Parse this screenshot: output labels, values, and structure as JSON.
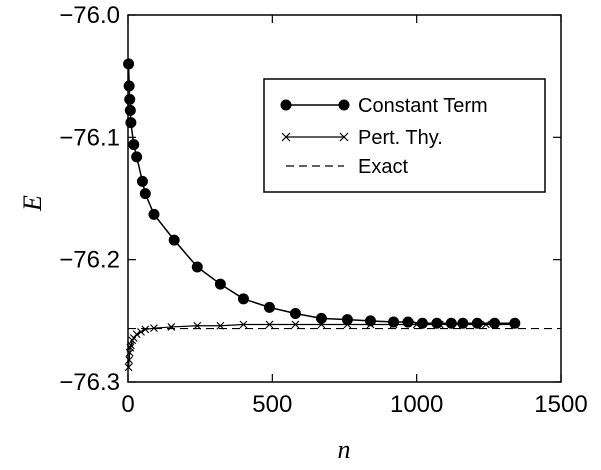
{
  "chart_data": {
    "type": "line",
    "title": "",
    "xlabel": "n",
    "ylabel": "E",
    "xlim": [
      0,
      1500
    ],
    "ylim": [
      -76.3,
      -76.0
    ],
    "x_ticks": [
      0,
      500,
      1000,
      1500
    ],
    "x_tick_labels": [
      "0",
      "500",
      "1000",
      "1500"
    ],
    "y_ticks": [
      -76.0,
      -76.1,
      -76.2,
      -76.3
    ],
    "y_tick_labels": [
      "−76.0",
      "−76.1",
      "−76.2",
      "−76.3"
    ],
    "grid": false,
    "legend_position": "top-right",
    "series": [
      {
        "name": "Constant Term",
        "marker": "circle",
        "line": "solid",
        "x": [
          2,
          4,
          6,
          8,
          10,
          20,
          30,
          50,
          60,
          90,
          160,
          240,
          320,
          400,
          490,
          580,
          670,
          760,
          840,
          920,
          970,
          1020,
          1070,
          1120,
          1160,
          1210,
          1270,
          1340
        ],
        "y": [
          -76.04,
          -76.058,
          -76.069,
          -76.078,
          -76.088,
          -76.106,
          -76.116,
          -76.136,
          -76.146,
          -76.163,
          -76.184,
          -76.206,
          -76.22,
          -76.232,
          -76.239,
          -76.244,
          -76.248,
          -76.249,
          -76.25,
          -76.251,
          -76.251,
          -76.252,
          -76.252,
          -76.252,
          -76.252,
          -76.252,
          -76.252,
          -76.252
        ]
      },
      {
        "name": "Pert. Thy.",
        "marker": "x",
        "line": "solid",
        "x": [
          2,
          4,
          6,
          8,
          10,
          15,
          20,
          30,
          45,
          60,
          90,
          150,
          240,
          320,
          400,
          490,
          580,
          670,
          760,
          840,
          920,
          1000,
          1080,
          1160,
          1240,
          1340
        ],
        "y": [
          -76.288,
          -76.282,
          -76.276,
          -76.272,
          -76.27,
          -76.266,
          -76.264,
          -76.261,
          -76.259,
          -76.257,
          -76.256,
          -76.255,
          -76.254,
          -76.254,
          -76.253,
          -76.253,
          -76.253,
          -76.253,
          -76.253,
          -76.253,
          -76.253,
          -76.253,
          -76.253,
          -76.253,
          -76.253,
          -76.253
        ]
      },
      {
        "name": "Exact",
        "marker": "none",
        "line": "dashed",
        "x": [
          0,
          1500
        ],
        "y": [
          -76.2563,
          -76.2563
        ]
      }
    ]
  }
}
